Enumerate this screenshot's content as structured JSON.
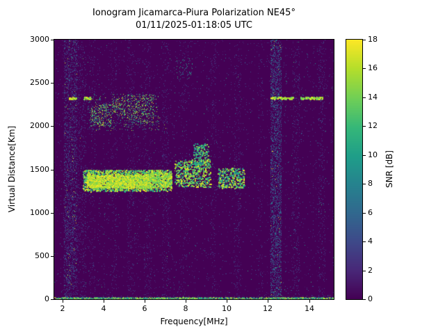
{
  "chart_data": {
    "type": "heatmap",
    "title": "Ionogram Jicamarca-Piura Polarization NE45°",
    "subtitle": "01/11/2025-01:18:05 UTC",
    "xlabel": "Frequency[MHz]",
    "ylabel": "Virtual Distance[Km]",
    "xlim": [
      1.6,
      15.2
    ],
    "ylim": [
      0,
      3000
    ],
    "xticks": [
      2,
      4,
      6,
      8,
      10,
      12,
      14
    ],
    "yticks": [
      0,
      500,
      1000,
      1500,
      2000,
      2500,
      3000
    ],
    "grid": false,
    "colorbar": {
      "label": "SNR [dB]",
      "min": 0,
      "max": 18,
      "ticks": [
        0,
        2,
        4,
        6,
        8,
        10,
        12,
        14,
        16,
        18
      ],
      "colormap": "viridis",
      "position": "right"
    },
    "background_color": "#440154",
    "viridis_stops": [
      [
        0.0,
        "#440154"
      ],
      [
        0.11,
        "#482878"
      ],
      [
        0.22,
        "#3e4989"
      ],
      [
        0.33,
        "#31688e"
      ],
      [
        0.44,
        "#26828e"
      ],
      [
        0.55,
        "#1f9e89"
      ],
      [
        0.66,
        "#35b779"
      ],
      [
        0.77,
        "#6ece58"
      ],
      [
        0.89,
        "#b5de2b"
      ],
      [
        1.0,
        "#fde725"
      ]
    ],
    "noise": {
      "seed": 42,
      "base_density": 0.012,
      "col_variation": 0.06,
      "v": [
        1,
        5
      ],
      "bright_frac": 0.004,
      "bright_v": [
        5,
        12
      ]
    },
    "features": [
      {
        "kind": "vband",
        "f": [
          2.08,
          2.68
        ],
        "density": 0.3,
        "v": [
          1,
          6
        ],
        "bright": 0.04
      },
      {
        "kind": "vband",
        "f": [
          2.72,
          3.12
        ],
        "density": 0.1,
        "v": [
          1,
          5
        ],
        "bright": 0.01
      },
      {
        "kind": "vband",
        "f": [
          3.3,
          3.55
        ],
        "density": 0.05,
        "v": [
          1,
          4
        ],
        "bright": 0
      },
      {
        "kind": "vband",
        "f": [
          4.35,
          4.6
        ],
        "density": 0.05,
        "v": [
          1,
          4
        ],
        "bright": 0
      },
      {
        "kind": "vband",
        "f": [
          5.15,
          5.5
        ],
        "density": 0.06,
        "v": [
          1,
          4
        ],
        "bright": 0.005
      },
      {
        "kind": "vband",
        "f": [
          5.95,
          6.3
        ],
        "density": 0.06,
        "v": [
          1,
          4
        ],
        "bright": 0.005
      },
      {
        "kind": "vband",
        "f": [
          6.85,
          7.15
        ],
        "density": 0.07,
        "v": [
          1,
          5
        ],
        "bright": 0.005
      },
      {
        "kind": "vband",
        "f": [
          7.75,
          8.0
        ],
        "density": 0.04,
        "v": [
          1,
          4
        ],
        "bright": 0
      },
      {
        "kind": "vband",
        "f": [
          9.2,
          9.45
        ],
        "density": 0.06,
        "v": [
          1,
          4
        ],
        "bright": 0.005
      },
      {
        "kind": "vband",
        "f": [
          10.35,
          10.65
        ],
        "density": 0.06,
        "v": [
          1,
          4
        ],
        "bright": 0.005
      },
      {
        "kind": "vband",
        "f": [
          11.5,
          11.7
        ],
        "density": 0.04,
        "v": [
          1,
          4
        ],
        "bright": 0
      },
      {
        "kind": "vband",
        "f": [
          12.12,
          12.62
        ],
        "density": 0.4,
        "v": [
          1,
          8
        ],
        "bright": 0.02
      },
      {
        "kind": "vband",
        "f": [
          13.2,
          13.5
        ],
        "density": 0.08,
        "v": [
          1,
          5
        ],
        "bright": 0.005
      },
      {
        "kind": "vband",
        "f": [
          14.45,
          14.75
        ],
        "density": 0.07,
        "v": [
          1,
          5
        ],
        "bright": 0.005
      },
      {
        "kind": "cluster",
        "f": [
          3.0,
          7.3
        ],
        "alt": [
          1250,
          1500
        ],
        "points": 2200,
        "v": [
          9,
          18
        ],
        "size": 2
      },
      {
        "kind": "cluster",
        "f": [
          3.15,
          6.3
        ],
        "alt": [
          1290,
          1440
        ],
        "points": 1600,
        "v": [
          14,
          18
        ],
        "size": 2
      },
      {
        "kind": "cluster",
        "f": [
          6.3,
          7.3
        ],
        "alt": [
          1300,
          1480
        ],
        "points": 500,
        "v": [
          12,
          18
        ],
        "size": 2
      },
      {
        "kind": "cluster",
        "f": [
          7.45,
          9.2
        ],
        "alt": [
          1300,
          1620
        ],
        "points": 700,
        "v": [
          9,
          18
        ],
        "size": 2
      },
      {
        "kind": "cluster",
        "f": [
          8.35,
          9.1
        ],
        "alt": [
          1560,
          1800
        ],
        "points": 180,
        "v": [
          7,
          15
        ],
        "size": 2
      },
      {
        "kind": "cluster",
        "f": [
          9.55,
          10.85
        ],
        "alt": [
          1290,
          1520
        ],
        "points": 420,
        "v": [
          7,
          18
        ],
        "size": 2
      },
      {
        "kind": "cluster",
        "f": [
          3.2,
          6.7
        ],
        "alt": [
          1950,
          2380
        ],
        "points": 450,
        "v": [
          5,
          16
        ],
        "size": 1
      },
      {
        "kind": "cluster",
        "f": [
          3.35,
          4.35
        ],
        "alt": [
          2000,
          2260
        ],
        "points": 260,
        "v": [
          8,
          18
        ],
        "size": 1
      },
      {
        "kind": "cluster",
        "f": [
          5.1,
          6.45
        ],
        "alt": [
          2050,
          2370
        ],
        "points": 300,
        "v": [
          8,
          18
        ],
        "size": 1
      },
      {
        "kind": "cluster",
        "f": [
          4.4,
          5.05
        ],
        "alt": [
          2130,
          2330
        ],
        "points": 130,
        "v": [
          8,
          18
        ],
        "size": 1
      },
      {
        "kind": "cluster",
        "f": [
          7.5,
          8.3
        ],
        "alt": [
          2550,
          2800
        ],
        "points": 60,
        "v": [
          4,
          12
        ],
        "size": 1
      },
      {
        "kind": "cluster",
        "f": [
          1.6,
          15.2
        ],
        "alt": [
          0,
          25
        ],
        "points": 2600,
        "v": [
          4,
          18
        ],
        "size": 1
      },
      {
        "kind": "scatter",
        "points": 250,
        "v": [
          4,
          12
        ],
        "size": 1
      },
      {
        "kind": "hline",
        "alt": 2330,
        "jitter": 14,
        "dots_per_mhz": 70,
        "v": [
          13,
          18
        ],
        "size": 2,
        "segments": [
          [
            2.28,
            2.66
          ],
          [
            3.0,
            3.38
          ],
          [
            12.08,
            13.22
          ],
          [
            13.56,
            14.62
          ]
        ]
      }
    ]
  }
}
